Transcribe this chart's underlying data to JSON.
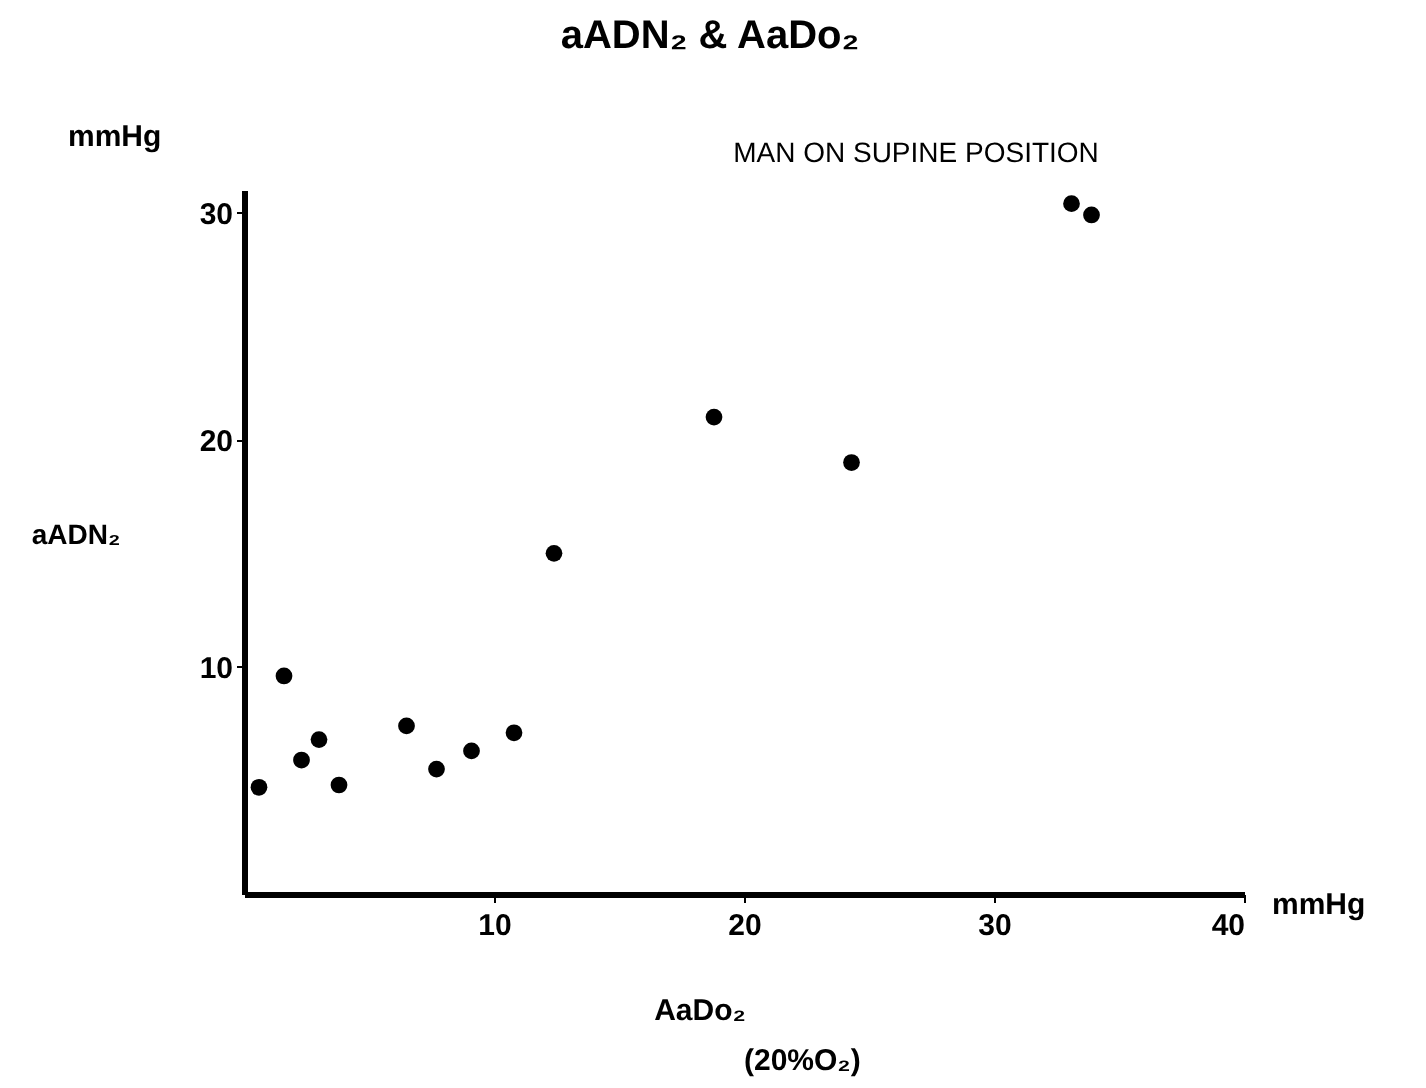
{
  "chart_data": {
    "type": "scatter",
    "title": "aADN₂ & AaDo₂",
    "subtitle": "MAN ON SUPINE POSITION",
    "xlabel": "AaDo₂",
    "ylabel": "aADN₂",
    "annotations": [
      "mmHg",
      "mmHg",
      "(20%O₂)"
    ],
    "x": [
      0.6,
      1.6,
      2.3,
      3.0,
      3.8,
      6.5,
      7.7,
      9.1,
      10.8,
      12.4,
      18.8,
      24.3,
      33.1,
      33.9
    ],
    "series": [
      {
        "color": "#000000",
        "values": [
          4.7,
          9.6,
          5.9,
          6.8,
          4.8,
          7.4,
          5.5,
          6.3,
          7.1,
          15.0,
          21.0,
          19.0,
          30.4,
          29.9
        ]
      }
    ],
    "xlim": [
      0,
      40
    ],
    "ylim": [
      0,
      31
    ],
    "xticks": [
      10,
      20,
      30,
      40
    ],
    "yticks": [
      10,
      20,
      30
    ],
    "grid": false,
    "marker": "circle"
  }
}
